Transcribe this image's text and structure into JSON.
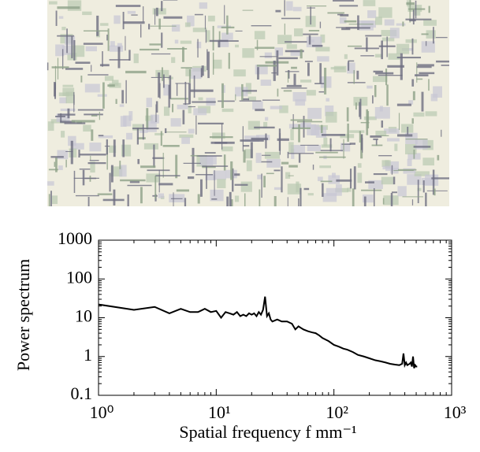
{
  "chart_data": {
    "type": "line",
    "xlabel": "Spatial frequency  f  mm⁻¹",
    "ylabel": "Power spectrum",
    "log_x": true,
    "log_y": true,
    "color": "#000000",
    "xlim": [
      1,
      1000
    ],
    "xticks": [
      {
        "value": 1,
        "label": "10⁰"
      },
      {
        "value": 10,
        "label": "10¹"
      },
      {
        "value": 100,
        "label": "10²"
      },
      {
        "value": 1000,
        "label": "10³"
      }
    ],
    "ylim": [
      0.1,
      1000
    ],
    "yticks": [
      0.1,
      1,
      10,
      100,
      1000
    ],
    "x": [
      1,
      2,
      3,
      4,
      5,
      6,
      7,
      8,
      9,
      10,
      11,
      12,
      13,
      14,
      15,
      16,
      17,
      18,
      19,
      20,
      21,
      22,
      23,
      24,
      25,
      26,
      27,
      28,
      29,
      30,
      33,
      36,
      40,
      44,
      47,
      50,
      55,
      60,
      65,
      70,
      75,
      80,
      90,
      100,
      110,
      120,
      130,
      145,
      160,
      180,
      200,
      225,
      250,
      275,
      300,
      330,
      360,
      380,
      390,
      400,
      410,
      420,
      440,
      450,
      460,
      470,
      480,
      490,
      500,
      510
    ],
    "values": [
      22,
      16,
      19,
      13,
      17,
      14,
      14,
      17,
      14,
      15,
      10,
      14,
      13,
      12,
      14,
      11,
      12,
      11,
      13,
      12,
      13,
      11,
      14,
      12,
      16,
      35,
      11,
      13,
      9,
      8,
      9,
      8,
      8,
      7,
      5,
      6,
      5,
      4.5,
      4.2,
      4,
      3.5,
      3,
      2.5,
      2,
      1.8,
      1.6,
      1.5,
      1.3,
      1.1,
      1,
      0.9,
      0.8,
      0.75,
      0.7,
      0.65,
      0.62,
      0.6,
      0.65,
      1.2,
      0.6,
      0.7,
      0.6,
      0.65,
      0.7,
      0.55,
      1.0,
      0.5,
      0.6,
      0.55,
      0.55
    ]
  }
}
